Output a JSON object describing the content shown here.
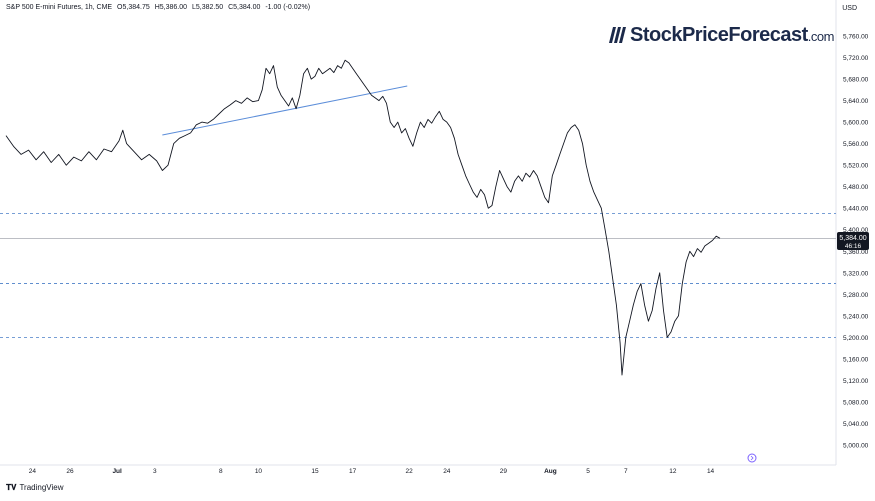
{
  "header": {
    "symbol": "S&P 500 E-mini Futures, 1h, CME",
    "open": "O5,384.75",
    "high": "H5,386.00",
    "low": "L5,382.50",
    "close": "C5,384.00",
    "change": "-1.00 (-0.02%)"
  },
  "currency": "USD",
  "watermark": {
    "main": "StockPriceForecast",
    "suffix": ".com",
    "icon": "stripes-logo-icon"
  },
  "footer": {
    "brand": "TradingView",
    "icon": "tradingview-logo-icon"
  },
  "price_badge": {
    "price": "5,384.00",
    "countdown": "46:16"
  },
  "colors": {
    "price_line": "#131722",
    "trendline": "#5b8dd9",
    "dashed_levels": "#4a7ec7",
    "badge_bg": "#131722",
    "grid_border": "#e0e3eb"
  },
  "chart_data": {
    "type": "line",
    "title": "",
    "ylim": [
      4960,
      5790
    ],
    "y_ticks": [
      "5,760.00",
      "5,720.00",
      "5,680.00",
      "5,640.00",
      "5,600.00",
      "5,560.00",
      "5,520.00",
      "5,480.00",
      "5,440.00",
      "5,400.00",
      "5,360.00",
      "5,320.00",
      "5,280.00",
      "5,240.00",
      "5,200.00",
      "5,160.00",
      "5,120.00",
      "5,080.00",
      "5,040.00",
      "5,000.00"
    ],
    "x_ticks": [
      {
        "label": "24",
        "bold": false
      },
      {
        "label": "26",
        "bold": false
      },
      {
        "label": "Jul",
        "bold": true
      },
      {
        "label": "3",
        "bold": false
      },
      {
        "label": "8",
        "bold": false
      },
      {
        "label": "10",
        "bold": false
      },
      {
        "label": "15",
        "bold": false
      },
      {
        "label": "17",
        "bold": false
      },
      {
        "label": "22",
        "bold": false
      },
      {
        "label": "24",
        "bold": false
      },
      {
        "label": "29",
        "bold": false
      },
      {
        "label": "Aug",
        "bold": true
      },
      {
        "label": "5",
        "bold": false
      },
      {
        "label": "7",
        "bold": false
      },
      {
        "label": "12",
        "bold": false
      },
      {
        "label": "14",
        "bold": false
      }
    ],
    "x_tick_positions": [
      0,
      2,
      4.5,
      6.5,
      10,
      12,
      15,
      17,
      20,
      22,
      25,
      27.5,
      29.5,
      31.5,
      34,
      36
    ],
    "x_domain": [
      -1.4,
      38.2
    ],
    "horizontal_levels": [
      5430,
      5300,
      5200
    ],
    "current_price": 5384,
    "trendline": [
      {
        "x": 6.9,
        "y": 5576
      },
      {
        "x": 19.9,
        "y": 5667
      }
    ],
    "series": [
      {
        "points": [
          [
            -1.4,
            5575
          ],
          [
            -1.0,
            5555
          ],
          [
            -0.6,
            5540
          ],
          [
            -0.2,
            5548
          ],
          [
            0.2,
            5530
          ],
          [
            0.6,
            5545
          ],
          [
            1.0,
            5525
          ],
          [
            1.4,
            5540
          ],
          [
            1.8,
            5520
          ],
          [
            2.2,
            5535
          ],
          [
            2.6,
            5528
          ],
          [
            3.0,
            5545
          ],
          [
            3.4,
            5530
          ],
          [
            3.8,
            5550
          ],
          [
            4.2,
            5545
          ],
          [
            4.6,
            5565
          ],
          [
            4.8,
            5585
          ],
          [
            5.0,
            5560
          ],
          [
            5.4,
            5545
          ],
          [
            5.8,
            5530
          ],
          [
            6.2,
            5540
          ],
          [
            6.6,
            5528
          ],
          [
            6.9,
            5510
          ],
          [
            7.2,
            5520
          ],
          [
            7.5,
            5560
          ],
          [
            7.8,
            5570
          ],
          [
            8.1,
            5575
          ],
          [
            8.4,
            5580
          ],
          [
            8.7,
            5595
          ],
          [
            9.0,
            5600
          ],
          [
            9.3,
            5598
          ],
          [
            9.6,
            5605
          ],
          [
            9.9,
            5615
          ],
          [
            10.2,
            5625
          ],
          [
            10.5,
            5632
          ],
          [
            10.8,
            5640
          ],
          [
            11.1,
            5635
          ],
          [
            11.4,
            5645
          ],
          [
            11.7,
            5638
          ],
          [
            12.0,
            5640
          ],
          [
            12.2,
            5660
          ],
          [
            12.4,
            5700
          ],
          [
            12.6,
            5690
          ],
          [
            12.8,
            5705
          ],
          [
            13.0,
            5665
          ],
          [
            13.2,
            5650
          ],
          [
            13.4,
            5640
          ],
          [
            13.6,
            5630
          ],
          [
            13.8,
            5645
          ],
          [
            14.0,
            5625
          ],
          [
            14.2,
            5650
          ],
          [
            14.4,
            5690
          ],
          [
            14.6,
            5700
          ],
          [
            14.8,
            5680
          ],
          [
            15.0,
            5685
          ],
          [
            15.2,
            5700
          ],
          [
            15.4,
            5690
          ],
          [
            15.6,
            5695
          ],
          [
            15.8,
            5700
          ],
          [
            16.0,
            5692
          ],
          [
            16.2,
            5705
          ],
          [
            16.4,
            5700
          ],
          [
            16.6,
            5715
          ],
          [
            16.8,
            5710
          ],
          [
            17.0,
            5700
          ],
          [
            17.2,
            5690
          ],
          [
            17.4,
            5680
          ],
          [
            17.6,
            5670
          ],
          [
            17.8,
            5660
          ],
          [
            18.0,
            5650
          ],
          [
            18.2,
            5645
          ],
          [
            18.4,
            5640
          ],
          [
            18.6,
            5648
          ],
          [
            18.8,
            5635
          ],
          [
            19.0,
            5600
          ],
          [
            19.2,
            5590
          ],
          [
            19.4,
            5600
          ],
          [
            19.6,
            5580
          ],
          [
            19.8,
            5588
          ],
          [
            20.0,
            5570
          ],
          [
            20.2,
            5555
          ],
          [
            20.4,
            5580
          ],
          [
            20.6,
            5600
          ],
          [
            20.8,
            5590
          ],
          [
            21.0,
            5605
          ],
          [
            21.2,
            5598
          ],
          [
            21.4,
            5610
          ],
          [
            21.6,
            5620
          ],
          [
            21.8,
            5605
          ],
          [
            22.0,
            5600
          ],
          [
            22.2,
            5590
          ],
          [
            22.4,
            5570
          ],
          [
            22.6,
            5540
          ],
          [
            22.8,
            5520
          ],
          [
            23.0,
            5500
          ],
          [
            23.2,
            5485
          ],
          [
            23.4,
            5470
          ],
          [
            23.6,
            5460
          ],
          [
            23.8,
            5475
          ],
          [
            24.0,
            5465
          ],
          [
            24.2,
            5440
          ],
          [
            24.4,
            5445
          ],
          [
            24.6,
            5480
          ],
          [
            24.8,
            5510
          ],
          [
            25.0,
            5495
          ],
          [
            25.2,
            5480
          ],
          [
            25.4,
            5470
          ],
          [
            25.6,
            5490
          ],
          [
            25.8,
            5500
          ],
          [
            26.0,
            5490
          ],
          [
            26.2,
            5505
          ],
          [
            26.4,
            5498
          ],
          [
            26.6,
            5510
          ],
          [
            26.8,
            5500
          ],
          [
            27.0,
            5480
          ],
          [
            27.2,
            5460
          ],
          [
            27.4,
            5450
          ],
          [
            27.6,
            5500
          ],
          [
            27.8,
            5520
          ],
          [
            28.0,
            5540
          ],
          [
            28.2,
            5560
          ],
          [
            28.4,
            5580
          ],
          [
            28.6,
            5590
          ],
          [
            28.8,
            5595
          ],
          [
            29.0,
            5585
          ],
          [
            29.2,
            5560
          ],
          [
            29.4,
            5520
          ],
          [
            29.6,
            5490
          ],
          [
            29.8,
            5470
          ],
          [
            30.0,
            5455
          ],
          [
            30.2,
            5440
          ],
          [
            30.4,
            5400
          ],
          [
            30.6,
            5360
          ],
          [
            30.8,
            5310
          ],
          [
            31.0,
            5260
          ],
          [
            31.2,
            5190
          ],
          [
            31.3,
            5130
          ],
          [
            31.5,
            5200
          ],
          [
            31.7,
            5230
          ],
          [
            31.9,
            5260
          ],
          [
            32.1,
            5285
          ],
          [
            32.3,
            5300
          ],
          [
            32.5,
            5260
          ],
          [
            32.7,
            5230
          ],
          [
            32.9,
            5250
          ],
          [
            33.1,
            5290
          ],
          [
            33.3,
            5320
          ],
          [
            33.5,
            5250
          ],
          [
            33.7,
            5200
          ],
          [
            33.9,
            5210
          ],
          [
            34.1,
            5230
          ],
          [
            34.3,
            5240
          ],
          [
            34.5,
            5300
          ],
          [
            34.7,
            5340
          ],
          [
            34.9,
            5360
          ],
          [
            35.1,
            5350
          ],
          [
            35.3,
            5365
          ],
          [
            35.5,
            5358
          ],
          [
            35.7,
            5370
          ],
          [
            35.9,
            5375
          ],
          [
            36.1,
            5380
          ],
          [
            36.3,
            5388
          ],
          [
            36.5,
            5384
          ]
        ]
      }
    ]
  }
}
